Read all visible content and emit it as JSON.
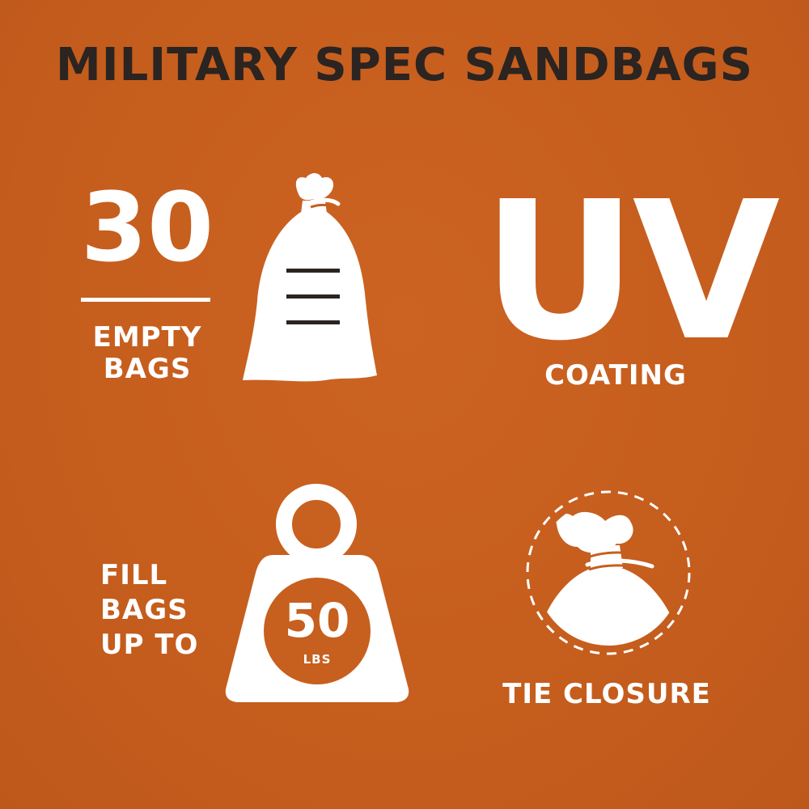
{
  "title": "MILITARY SPEC SANDBAGS",
  "features": {
    "empty_bags": {
      "count": "30",
      "line1": "EMPTY",
      "line2": "BAGS",
      "icon": "sandbag-icon"
    },
    "uv": {
      "headline": "UV",
      "label": "COATING"
    },
    "weight": {
      "line1": "FILL",
      "line2": "BAGS",
      "line3": "UP TO",
      "value": "50",
      "unit": "LBS",
      "icon": "weight-icon"
    },
    "tie": {
      "label": "TIE CLOSURE",
      "icon": "tie-closure-icon"
    }
  },
  "colors": {
    "background": "#c75f1f",
    "title": "#2b2421",
    "foreground": "#ffffff"
  }
}
